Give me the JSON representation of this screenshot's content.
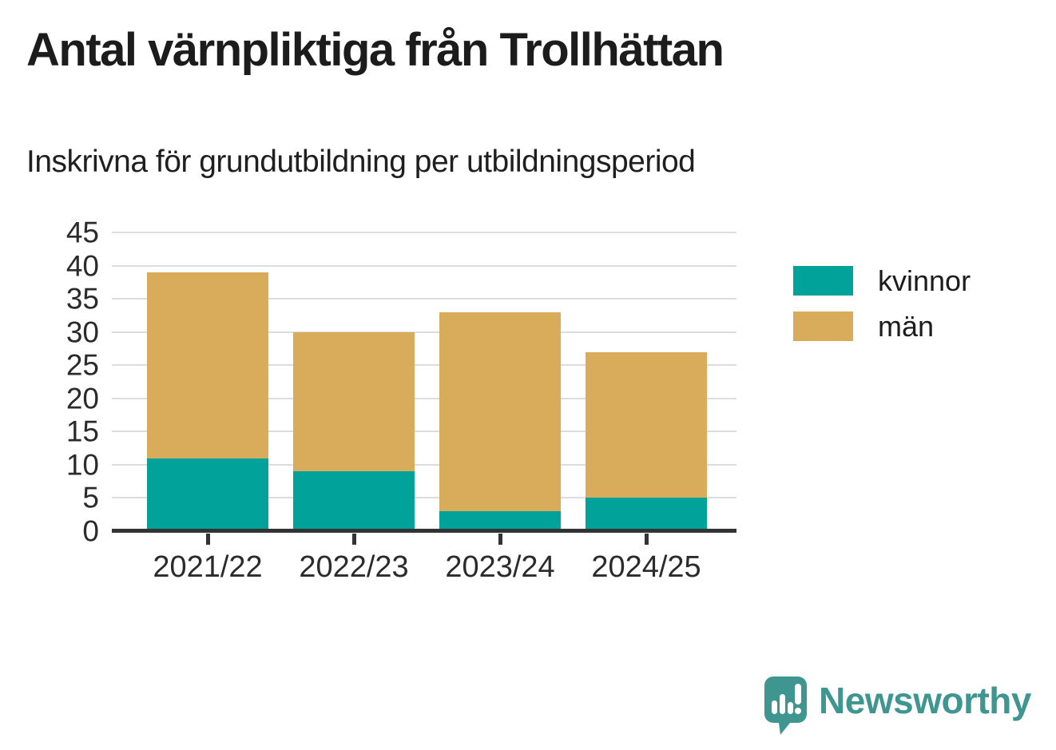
{
  "header": {
    "title": "Antal värnpliktiga från Trollhättan",
    "subtitle": "Inskrivna för grundutbildning per utbildningsperiod"
  },
  "chart_data": {
    "type": "bar",
    "stacked": true,
    "title": "Antal värnpliktiga från Trollhättan",
    "subtitle": "Inskrivna för grundutbildning per utbildningsperiod",
    "categories": [
      "2021/22",
      "2022/23",
      "2023/24",
      "2024/25"
    ],
    "series": [
      {
        "name": "kvinnor",
        "color": "#00a29a",
        "values": [
          11,
          9,
          3,
          5
        ]
      },
      {
        "name": "män",
        "color": "#d9ac5c",
        "values": [
          28,
          21,
          30,
          22
        ]
      }
    ],
    "totals": [
      39,
      30,
      33,
      27
    ],
    "xlabel": "",
    "ylabel": "",
    "ylim": [
      0,
      45
    ],
    "ytick_step": 5,
    "grid": "horizontal",
    "gridline_color": "#dcdcdc",
    "axis_color": "#333333",
    "legend_position": "right"
  },
  "branding": {
    "logo_text": "Newsworthy",
    "logo_color": "#3f958f"
  }
}
